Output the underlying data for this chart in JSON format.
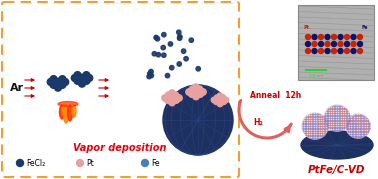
{
  "background_color": "#ffffff",
  "border_color": "#f0a030",
  "vapor_deposition_text": "Vapor deposition",
  "vapor_deposition_color": "#e8000d",
  "legend_items": [
    {
      "label": "FeCl₂",
      "color": "#1a3a6b"
    },
    {
      "label": "Pt",
      "color": "#e8a0a0"
    },
    {
      "label": "Fe",
      "color": "#4a7fb5"
    }
  ],
  "ar_text": "Ar",
  "ar_color": "#111111",
  "arrow_color": "#cc0000",
  "anneal_text": "Anneal  12h",
  "anneal_color": "#cc0000",
  "h2_text": "H₂",
  "h2_color": "#cc0000",
  "ptfe_text": "PtFe/C-VD",
  "ptfe_color": "#cc0000",
  "fecl2_color": "#1a3a6b",
  "pt_cluster_color": "#e8a0a0",
  "carbon_dark": "#1e3060",
  "carbon_mid": "#2a4a8e",
  "small_dots_color": "#1a3a6b",
  "fire_color1": "#ff3300",
  "fire_color2": "#ff8800",
  "tem_bg": "#aaaaaa",
  "scale_bar_color": "#33cc33",
  "pt_dot_color": "#cc2200",
  "fe_dot_color": "#111166"
}
